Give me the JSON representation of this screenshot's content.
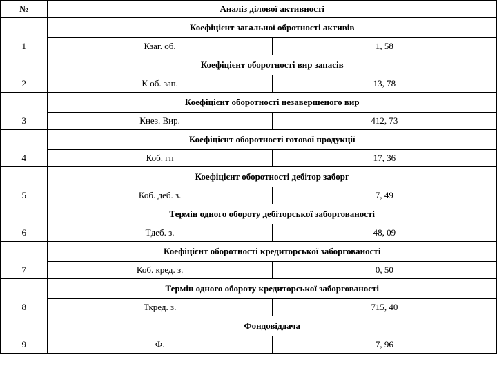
{
  "header": {
    "num_label": "№",
    "title": "Аналіз ділової активності"
  },
  "sections": [
    {
      "title": "Коефіцієнт загальної обротності активів",
      "num": "1",
      "label": "Кзаг. об.",
      "value": "1, 58"
    },
    {
      "title": "Коефіцієнт оборотності вир запасів",
      "num": "2",
      "label": "К об. зап.",
      "value": "13, 78"
    },
    {
      "title": "Коефіцієнт оборотності незавершеного вир",
      "num": "3",
      "label": "Кнез. Вир.",
      "value": "412, 73"
    },
    {
      "title": "Коефіцієнт оборотності готової продукції",
      "num": "4",
      "label": "Коб. гп",
      "value": "17, 36"
    },
    {
      "title": "Коефіцієнт оборотності дебітор заборг",
      "num": "5",
      "label": "Коб. деб. з.",
      "value": "7, 49"
    },
    {
      "title": "Термін одного обороту дебіторської заборгованості",
      "num": "6",
      "label": "Тдеб. з.",
      "value": "48, 09"
    },
    {
      "title": "Коефіцієнт оборотності кредиторської заборгованості",
      "num": "7",
      "label": "Коб. кред. з.",
      "value": "0, 50"
    },
    {
      "title": "Термін одного обороту кредиторської заборгованості",
      "num": "8",
      "label": "Ткред. з.",
      "value": "715, 40"
    },
    {
      "title": "Фондовіддача",
      "num": "9",
      "label": "Ф.",
      "value": "7, 96"
    }
  ]
}
